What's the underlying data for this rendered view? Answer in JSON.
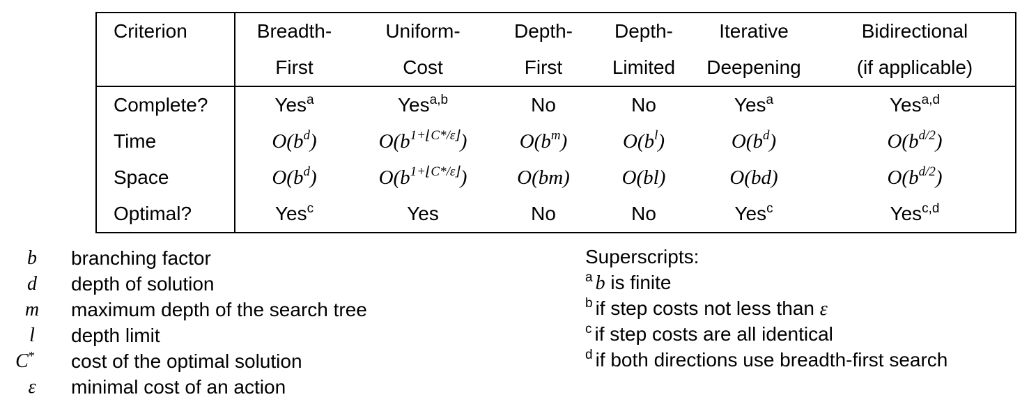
{
  "table": {
    "header": {
      "criterion": [
        "Criterion",
        ""
      ],
      "columns": [
        [
          "Breadth-",
          "First"
        ],
        [
          "Uniform-",
          "Cost"
        ],
        [
          "Depth-",
          "First"
        ],
        [
          "Depth-",
          "Limited"
        ],
        [
          "Iterative",
          "Deepening"
        ],
        [
          "Bidirectional",
          "(if applicable)"
        ]
      ]
    },
    "rows": [
      {
        "label": "Complete?",
        "cells": [
          {
            "text": "Yes",
            "sup": "a"
          },
          {
            "text": "Yes",
            "sup": "a,b"
          },
          {
            "text": "No",
            "sup": ""
          },
          {
            "text": "No",
            "sup": ""
          },
          {
            "text": "Yes",
            "sup": "a"
          },
          {
            "text": "Yes",
            "sup": "a,d"
          }
        ]
      },
      {
        "label": "Time",
        "cells": [
          {
            "base": "O(b",
            "exp": "d",
            "close": ")"
          },
          {
            "base": "O(b",
            "exp": "1+⌊C*/ε⌋",
            "close": ")"
          },
          {
            "base": "O(b",
            "exp": "m",
            "close": ")"
          },
          {
            "base": "O(b",
            "exp": "l",
            "close": ")"
          },
          {
            "base": "O(b",
            "exp": "d",
            "close": ")"
          },
          {
            "base": "O(b",
            "exp": "d/2",
            "close": ")"
          }
        ]
      },
      {
        "label": "Space",
        "cells": [
          {
            "base": "O(b",
            "exp": "d",
            "close": ")"
          },
          {
            "base": "O(b",
            "exp": "1+⌊C*/ε⌋",
            "close": ")"
          },
          {
            "base": "O(bm)",
            "exp": "",
            "close": ""
          },
          {
            "base": "O(bl)",
            "exp": "",
            "close": ""
          },
          {
            "base": "O(bd)",
            "exp": "",
            "close": ""
          },
          {
            "base": "O(b",
            "exp": "d/2",
            "close": ")"
          }
        ]
      },
      {
        "label": "Optimal?",
        "cells": [
          {
            "text": "Yes",
            "sup": "c"
          },
          {
            "text": "Yes",
            "sup": ""
          },
          {
            "text": "No",
            "sup": ""
          },
          {
            "text": "No",
            "sup": ""
          },
          {
            "text": "Yes",
            "sup": "c"
          },
          {
            "text": "Yes",
            "sup": "c,d"
          }
        ]
      }
    ]
  },
  "legend": [
    {
      "symbol": "b",
      "symbol_sup": "",
      "desc": "branching factor"
    },
    {
      "symbol": "d",
      "symbol_sup": "",
      "desc": "depth of solution"
    },
    {
      "symbol": "m",
      "symbol_sup": "",
      "desc": "maximum depth of the search tree"
    },
    {
      "symbol": "l",
      "symbol_sup": "",
      "desc": "depth limit"
    },
    {
      "symbol": "C",
      "symbol_sup": "*",
      "desc": "cost of the optimal solution"
    },
    {
      "symbol": "ε",
      "symbol_sup": "",
      "desc": "minimal cost of an action"
    }
  ],
  "superscripts": {
    "title": "Superscripts:",
    "items": [
      {
        "key": "a",
        "math_prefix": "b",
        "text": " is finite",
        "math_suffix": ""
      },
      {
        "key": "b",
        "math_prefix": "",
        "text": "if step costs not less than ",
        "math_suffix": "ε"
      },
      {
        "key": "c",
        "math_prefix": "",
        "text": "if step costs are all identical",
        "math_suffix": ""
      },
      {
        "key": "d",
        "math_prefix": "",
        "text": "if both directions use breadth-first search",
        "math_suffix": ""
      }
    ]
  }
}
